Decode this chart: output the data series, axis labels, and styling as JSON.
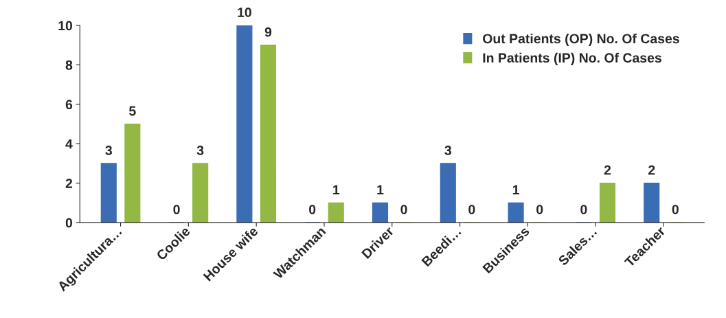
{
  "chart_data": {
    "type": "bar",
    "categories": [
      "Agricultura…",
      "Coolie",
      "House wife",
      "Watchman",
      "Driver",
      "Beedi…",
      "Business",
      "Sales…",
      "Teacher"
    ],
    "series": [
      {
        "name": "Out Patients (OP) No. Of Cases",
        "color": "#3a6db3",
        "values": [
          3,
          0,
          10,
          0,
          1,
          3,
          1,
          0,
          2
        ]
      },
      {
        "name": "In Patients (IP) No. Of Cases",
        "color": "#93b843",
        "values": [
          5,
          3,
          9,
          1,
          0,
          0,
          0,
          2,
          0
        ]
      }
    ],
    "ylim": [
      0,
      10
    ],
    "yticks": [
      0,
      2,
      4,
      6,
      8,
      10
    ],
    "grid": false,
    "legend": "top right",
    "data_labels": true
  }
}
